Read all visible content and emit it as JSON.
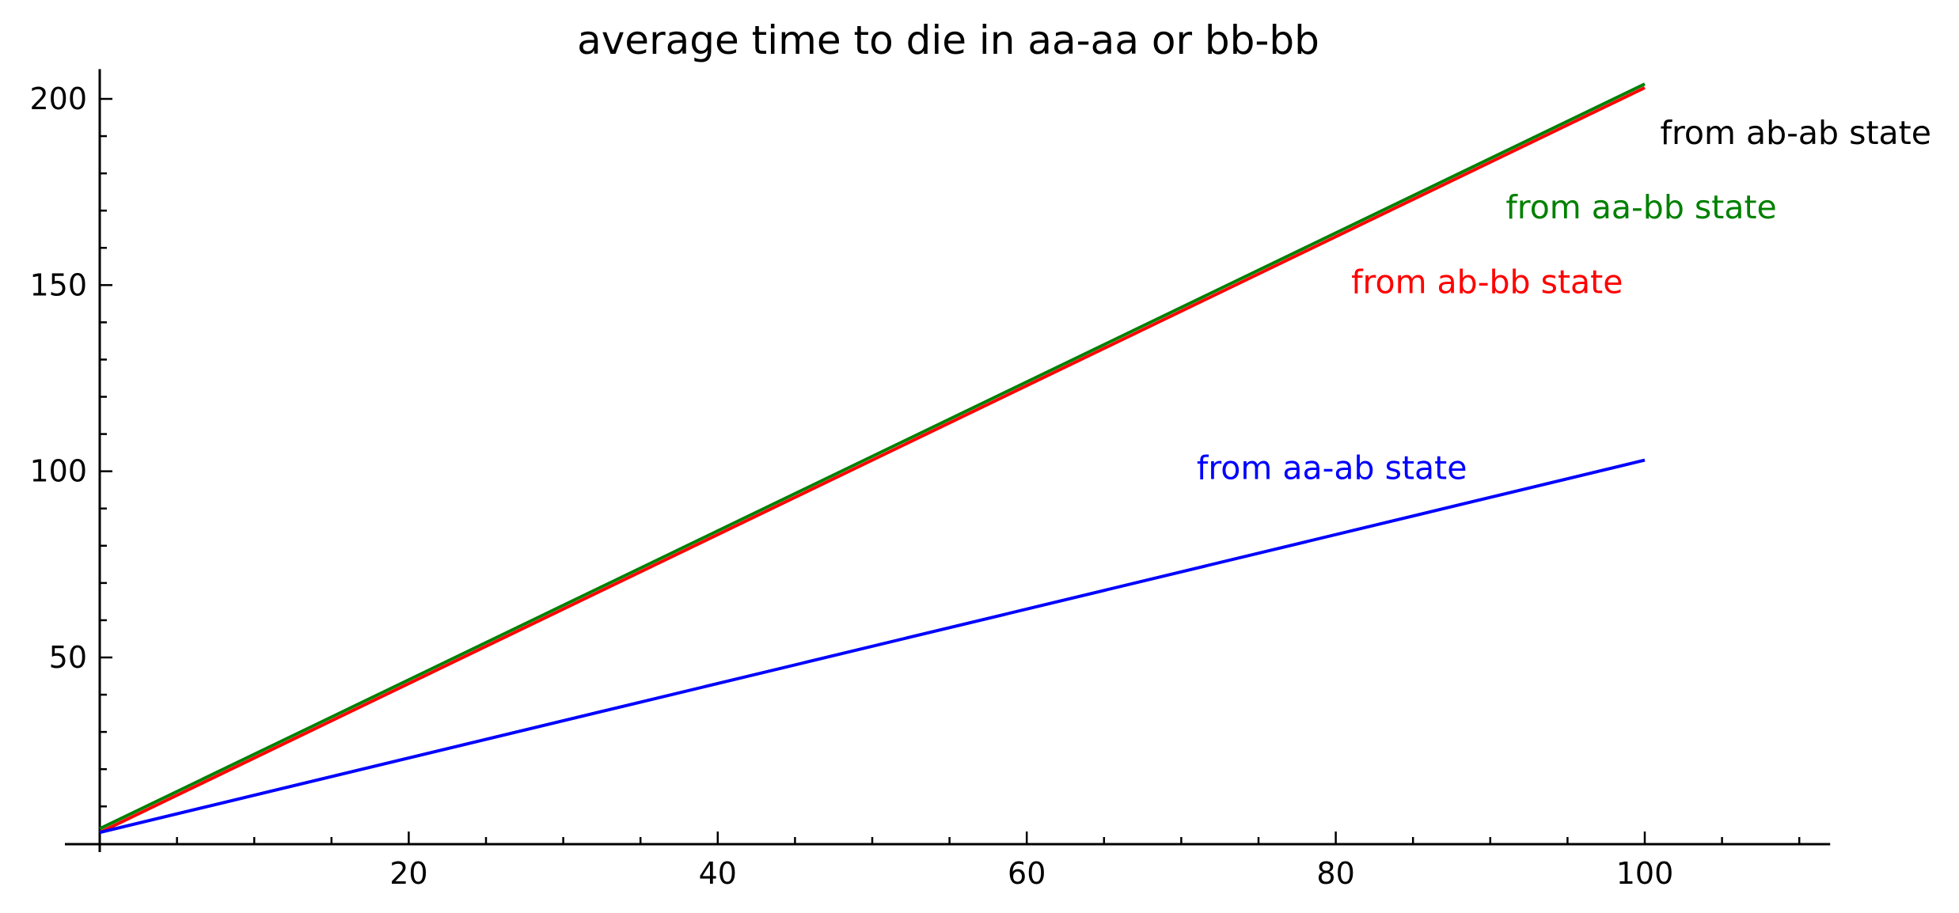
{
  "chart_data": {
    "type": "line",
    "title": "average time to die in aa-aa or bb-bb",
    "xlabel": "",
    "ylabel": "",
    "xlim": [
      0,
      112
    ],
    "ylim": [
      -1,
      208
    ],
    "x_ticks": [
      20,
      40,
      60,
      80,
      100
    ],
    "y_ticks": [
      50,
      100,
      150,
      200
    ],
    "x_minor_step": 5,
    "y_minor_step": 10,
    "grid": false,
    "series": [
      {
        "name": "from ab-ab state",
        "color": "#000000",
        "x": [
          0,
          100
        ],
        "y": [
          4,
          204
        ]
      },
      {
        "name": "from aa-bb state",
        "color": "#008000",
        "x": [
          0,
          100
        ],
        "y": [
          4,
          204
        ]
      },
      {
        "name": "from ab-bb state",
        "color": "#ff0000",
        "x": [
          0,
          100
        ],
        "y": [
          3,
          203
        ]
      },
      {
        "name": "from aa-ab state",
        "color": "#0000ff",
        "x": [
          0,
          100
        ],
        "y": [
          3,
          103
        ]
      }
    ],
    "annotations": [
      {
        "text": "from ab-ab state",
        "color": "#000000",
        "x": 101,
        "y": 190
      },
      {
        "text": "from aa-bb state",
        "color": "#008000",
        "x": 91,
        "y": 170
      },
      {
        "text": "from ab-bb state",
        "color": "#ff0000",
        "x": 81,
        "y": 150
      },
      {
        "text": "from aa-ab state",
        "color": "#0000ff",
        "x": 71,
        "y": 100
      }
    ]
  }
}
